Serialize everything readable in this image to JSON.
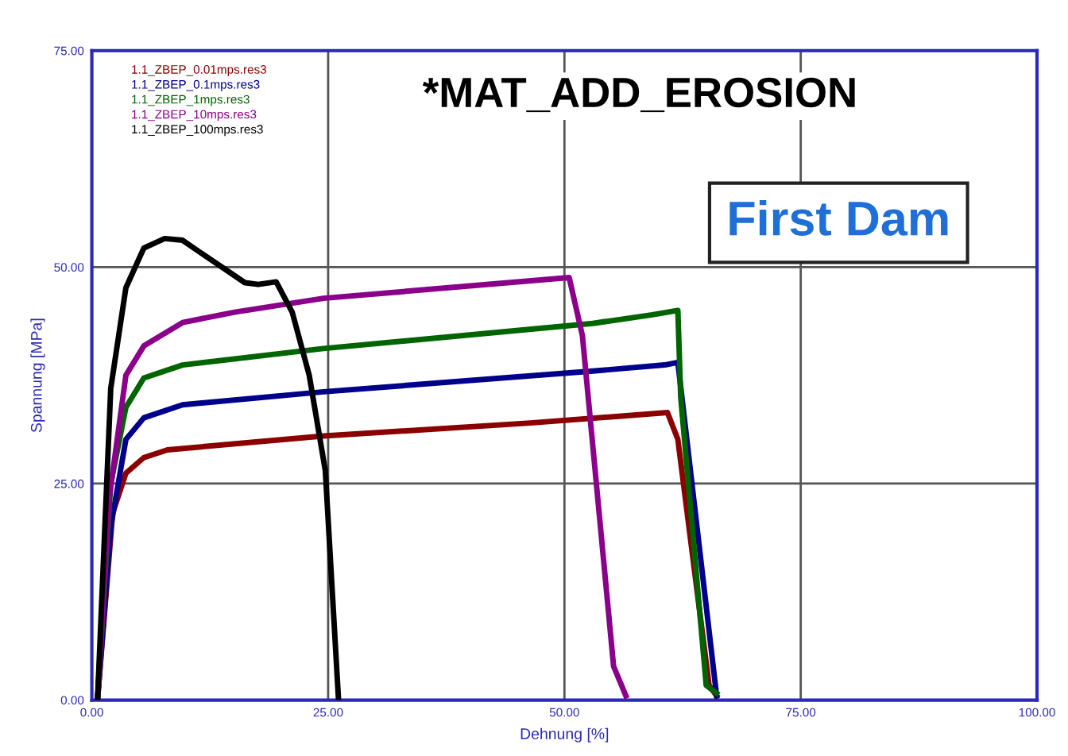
{
  "chart_data": {
    "type": "line",
    "title": "*MAT_ADD_EROSION",
    "xlabel": "Dehnung [%]",
    "ylabel": "Spannung [MPa]",
    "annotations": [
      "First Dam"
    ],
    "xlim": [
      0,
      100
    ],
    "ylim": [
      0,
      75
    ],
    "xticks": [
      {
        "value": 0,
        "label": "0.00"
      },
      {
        "value": 25,
        "label": "25.00"
      },
      {
        "value": 50,
        "label": "50.00"
      },
      {
        "value": 75,
        "label": "75.00"
      },
      {
        "value": 100,
        "label": "100.00"
      }
    ],
    "yticks": [
      {
        "value": 0,
        "label": "0.00"
      },
      {
        "value": 25,
        "label": "25.00"
      },
      {
        "value": 50,
        "label": "50.00"
      },
      {
        "value": 75,
        "label": "75.00"
      }
    ],
    "grid": true,
    "legend": "top left",
    "marker": "none",
    "line_style": "solid",
    "series": [
      {
        "name": "1.1_ZBEP_0.01mps.res3",
        "color": "#8b0000",
        "x": [
          0.6,
          2.2,
          3.6,
          5.5,
          8,
          24.5,
          46.4,
          60.9,
          62,
          65.3,
          66.1
        ],
        "values": [
          0,
          21.6,
          26.2,
          28,
          28.9,
          30.5,
          32,
          33.2,
          30.1,
          1.7,
          0.5
        ]
      },
      {
        "name": "1.1_ZBEP_0.1mps.res3",
        "color": "#00008b",
        "x": [
          0.6,
          2,
          3.6,
          5.5,
          9.6,
          24.5,
          53,
          60.6,
          62,
          66.1
        ],
        "values": [
          0,
          20,
          30.1,
          32.6,
          34.1,
          35.6,
          38,
          38.7,
          39,
          0.5
        ]
      },
      {
        "name": "1.1_ZBEP_1mps.res3",
        "color": "#006400",
        "x": [
          0.6,
          2,
          3.6,
          5.5,
          9.6,
          24.5,
          53,
          59.3,
          62,
          62.3,
          65,
          66.1
        ],
        "values": [
          0,
          25,
          33.8,
          37.2,
          38.7,
          40.6,
          43.5,
          44.5,
          45,
          35,
          1.7,
          0.8
        ]
      },
      {
        "name": "1.1_ZBEP_10mps.res3",
        "color": "#8b008b",
        "x": [
          0.6,
          1.8,
          3.6,
          5.5,
          9.6,
          15.1,
          24.5,
          50.5,
          51.9,
          55.2,
          56.5
        ],
        "values": [
          0,
          23,
          37.5,
          40.9,
          43.6,
          44.8,
          46.4,
          48.8,
          42.1,
          3.9,
          0.5
        ]
      },
      {
        "name": "1.1_ZBEP_100mps.res3",
        "color": "#000000",
        "x": [
          0.6,
          2,
          3.6,
          5.5,
          7.7,
          9.6,
          12.4,
          16.2,
          17.6,
          19.5,
          21.2,
          23,
          24.7,
          26.1
        ],
        "values": [
          0,
          36,
          47.6,
          52.2,
          53.3,
          53.1,
          51,
          48.2,
          48,
          48.3,
          44.8,
          37.5,
          26.5,
          0
        ]
      }
    ]
  }
}
